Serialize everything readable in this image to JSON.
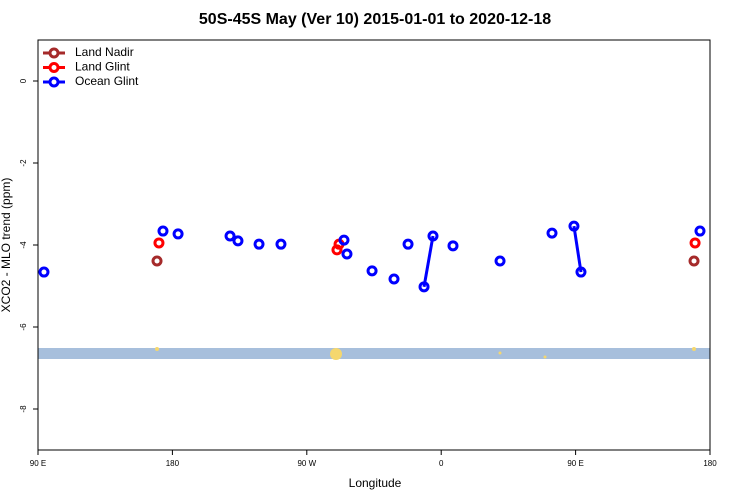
{
  "chart_data": {
    "type": "line",
    "title": "50S-45S May (Ver 10)   2015-01-01 to 2020-12-18",
    "xlabel": "Longitude",
    "ylabel": "XCO2 - MLO trend (ppm)",
    "xlim": [
      90,
      540
    ],
    "ylim": [
      -9,
      1
    ],
    "xticks": [
      {
        "value": 90,
        "label": "90 E"
      },
      180,
      {
        "value": 270,
        "label": "90 W"
      },
      {
        "value": 360,
        "label": "0"
      },
      {
        "value": 450,
        "label": "90 E"
      },
      {
        "value": 540,
        "label": "180"
      }
    ],
    "yticks": [
      0,
      -2,
      -4,
      -6,
      -8
    ],
    "legend": "top-left",
    "series": [
      {
        "name": "Land Nadir",
        "color": "#a52a2a",
        "x": [
          169.7,
          null,
          529.3
        ],
        "values": [
          -4.39,
          null,
          -4.39
        ]
      },
      {
        "name": "Land Glint",
        "color": "#ff0000",
        "x": [
          171.0,
          null,
          290.2,
          null,
          291.6,
          null,
          530.0
        ],
        "values": [
          -3.95,
          null,
          -4.12,
          null,
          -3.98,
          null,
          -3.95
        ]
      },
      {
        "name": "Ocean Glint",
        "color": "#0000ff",
        "x": [
          94.0,
          null,
          173.7,
          null,
          183.8,
          null,
          218.6,
          null,
          223.9,
          null,
          238.0,
          null,
          252.7,
          null,
          294.9,
          null,
          296.9,
          null,
          313.7,
          null,
          328.4,
          null,
          337.8,
          null,
          348.5,
          354.5,
          null,
          367.9,
          null,
          399.4,
          null,
          434.2,
          null,
          448.9,
          453.6,
          null,
          533.3
        ],
        "values": [
          -4.66,
          null,
          -3.66,
          null,
          -3.73,
          null,
          -3.78,
          null,
          -3.9,
          null,
          -3.98,
          null,
          -3.98,
          null,
          -3.88,
          null,
          -4.22,
          null,
          -4.63,
          null,
          -4.83,
          null,
          -3.98,
          null,
          -5.02,
          -3.78,
          null,
          -4.02,
          null,
          -4.39,
          null,
          -3.71,
          null,
          -3.54,
          -4.66,
          null,
          -3.66
        ]
      }
    ]
  }
}
